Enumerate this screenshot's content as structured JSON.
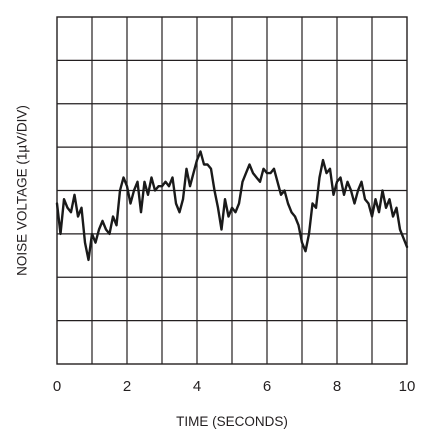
{
  "chart_data": {
    "type": "line",
    "xlabel": "TIME (SECONDS)",
    "ylabel": "NOISE VOLTAGE (1µV/DIV)",
    "xlim": [
      0,
      10
    ],
    "ylim": [
      -4,
      4
    ],
    "x_ticks": [
      "0",
      "2",
      "4",
      "6",
      "8",
      "10"
    ],
    "grid": true,
    "grid_x_divisions": 10,
    "grid_y_divisions": 8,
    "colors": {
      "trace": "#1a1a1a",
      "grid": "#231f20",
      "text": "#231f20"
    },
    "series": [
      {
        "x": [
          0,
          0.1,
          0.2,
          0.3,
          0.4,
          0.5,
          0.6,
          0.7,
          0.8,
          0.9,
          1.0,
          1.1,
          1.2,
          1.3,
          1.4,
          1.5,
          1.6,
          1.7,
          1.8,
          1.9,
          2.0,
          2.1,
          2.2,
          2.3,
          2.4,
          2.5,
          2.6,
          2.7,
          2.8,
          2.9,
          3.0,
          3.1,
          3.2,
          3.3,
          3.4,
          3.5,
          3.6,
          3.7,
          3.8,
          3.9,
          4.0,
          4.1,
          4.2,
          4.3,
          4.4,
          4.5,
          4.6,
          4.7,
          4.8,
          4.9,
          5.0,
          5.1,
          5.2,
          5.3,
          5.4,
          5.5,
          5.6,
          5.7,
          5.8,
          5.9,
          6.0,
          6.1,
          6.2,
          6.3,
          6.4,
          6.5,
          6.6,
          6.7,
          6.8,
          6.9,
          7.0,
          7.1,
          7.2,
          7.3,
          7.4,
          7.5,
          7.6,
          7.7,
          7.8,
          7.9,
          8.0,
          8.1,
          8.2,
          8.3,
          8.4,
          8.5,
          8.6,
          8.7,
          8.8,
          8.9,
          9.0,
          9.1,
          9.2,
          9.3,
          9.4,
          9.5,
          9.6,
          9.7,
          9.8,
          9.9,
          10.0
        ],
        "y": [
          -0.3,
          -1.0,
          -0.2,
          -0.4,
          -0.5,
          -0.1,
          -0.6,
          -0.4,
          -1.2,
          -1.6,
          -1.0,
          -1.2,
          -0.9,
          -0.7,
          -0.9,
          -1.0,
          -0.6,
          -0.8,
          0.0,
          0.3,
          0.1,
          -0.3,
          0.0,
          0.2,
          -0.5,
          0.2,
          -0.1,
          0.3,
          0.0,
          0.1,
          0.1,
          0.2,
          0.1,
          0.3,
          -0.3,
          -0.5,
          -0.2,
          0.5,
          0.1,
          0.4,
          0.7,
          0.9,
          0.6,
          0.6,
          0.5,
          0.0,
          -0.4,
          -0.9,
          -0.2,
          -0.6,
          -0.4,
          -0.5,
          -0.3,
          0.2,
          0.4,
          0.6,
          0.4,
          0.3,
          0.2,
          0.5,
          0.4,
          0.4,
          0.5,
          0.2,
          -0.1,
          0.0,
          -0.3,
          -0.5,
          -0.6,
          -0.8,
          -1.2,
          -1.4,
          -1.0,
          -0.3,
          -0.4,
          0.3,
          0.7,
          0.4,
          0.5,
          -0.1,
          0.2,
          0.3,
          -0.1,
          0.2,
          0.0,
          -0.3,
          0.0,
          0.2,
          -0.2,
          -0.3,
          -0.6,
          -0.2,
          -0.5,
          0.0,
          -0.4,
          -0.2,
          -0.6,
          -0.4,
          -0.9,
          -1.1,
          -1.3
        ]
      }
    ]
  }
}
